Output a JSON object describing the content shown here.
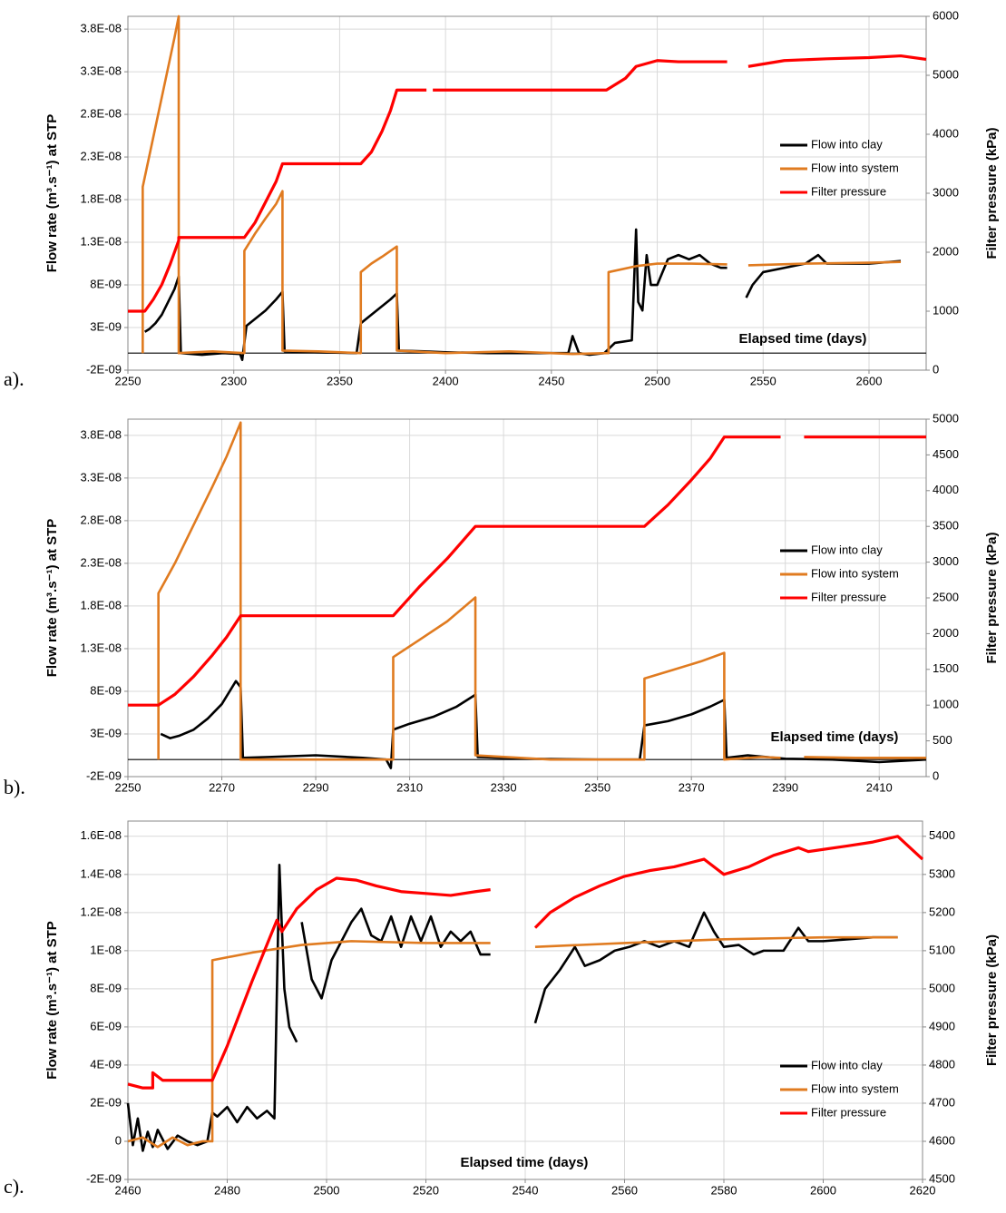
{
  "chart_data": [
    {
      "type": "line",
      "panel_label": "a).",
      "x_label": "Elapsed time (days)",
      "y_label": "Flow rate (m³.s⁻¹) at STP",
      "y2_label": "Filter pressure (kPa)",
      "xlim": [
        2250,
        2627
      ],
      "ylim": [
        -2e-09,
        3.95e-08
      ],
      "y2lim": [
        0,
        6000
      ],
      "grid": true,
      "legend": "right",
      "x_axis_crossing": 0,
      "xticks": [
        2250,
        2300,
        2350,
        2400,
        2450,
        2500,
        2550,
        2600
      ],
      "yticks": [
        {
          "value": -2e-09,
          "label": "-2E-09"
        },
        {
          "value": 3e-09,
          "label": "3E-09"
        },
        {
          "value": 8e-09,
          "label": "8E-09"
        },
        {
          "value": 1.3e-08,
          "label": "1.3E-08"
        },
        {
          "value": 1.8e-08,
          "label": "1.8E-08"
        },
        {
          "value": 2.3e-08,
          "label": "2.3E-08"
        },
        {
          "value": 2.8e-08,
          "label": "2.8E-08"
        },
        {
          "value": 3.3e-08,
          "label": "3.3E-08"
        },
        {
          "value": 3.8e-08,
          "label": "3.8E-08"
        }
      ],
      "y2ticks": [
        0,
        1000,
        2000,
        3000,
        4000,
        5000,
        6000
      ],
      "series": [
        {
          "name": "Flow into clay",
          "color": "#000000",
          "x": [
            2258,
            2260,
            2263,
            2266,
            2269,
            2272,
            2274,
            2275,
            2285,
            2295,
            2303,
            2304,
            2306,
            2310,
            2315,
            2320,
            2323,
            2324,
            2340,
            2358,
            2360,
            2365,
            2370,
            2374,
            2377,
            2378,
            2390,
            2400,
            2420,
            2440,
            2458,
            2460,
            2463,
            2468,
            2475,
            2480,
            2488,
            2490,
            2491,
            2493,
            2495,
            2497,
            2500,
            2505,
            2510,
            2515,
            2520,
            2525,
            2530,
            2533,
            2538,
            2542,
            2545,
            2550,
            2560,
            2570,
            2576,
            2580,
            2590,
            2600,
            2610,
            2615
          ],
          "values": [
            2.5e-09,
            2.8e-09,
            3.5e-09,
            4.5e-09,
            6e-09,
            7.5e-09,
            9e-09,
            0,
            -2e-10,
            0,
            -1e-10,
            -8e-10,
            3.2e-09,
            4e-09,
            5e-09,
            6.3e-09,
            7.2e-09,
            2e-10,
            1e-10,
            0,
            3.5e-09,
            4.5e-09,
            5.5e-09,
            6.3e-09,
            7e-09,
            3e-10,
            2e-10,
            1e-10,
            0,
            0,
            0,
            2e-09,
            0,
            -2e-10,
            0,
            1.2e-09,
            1.5e-09,
            1.45e-08,
            6e-09,
            5e-09,
            1.15e-08,
            8e-09,
            8e-09,
            1.1e-08,
            1.15e-08,
            1.1e-08,
            1.15e-08,
            1.05e-08,
            1e-08,
            1e-08,
            null,
            6.5e-09,
            8e-09,
            9.5e-09,
            1e-08,
            1.05e-08,
            1.15e-08,
            1.05e-08,
            1.05e-08,
            1.05e-08,
            1.07e-08,
            1.08e-08
          ]
        },
        {
          "name": "Flow into system",
          "color": "#e07b20",
          "x": [
            2257,
            2257,
            2260,
            2263,
            2266,
            2269,
            2272,
            2274,
            2274,
            2290,
            2305,
            2305,
            2310,
            2315,
            2320,
            2323,
            2323,
            2340,
            2360,
            2360,
            2365,
            2370,
            2377,
            2377,
            2400,
            2430,
            2460,
            2477,
            2477,
            2490,
            2500,
            2515,
            2533,
            2538,
            2543,
            2570,
            2600,
            2615
          ],
          "values": [
            0,
            1.95e-08,
            2.3e-08,
            2.65e-08,
            3e-08,
            3.35e-08,
            3.7e-08,
            3.95e-08,
            0,
            2e-10,
            0,
            1.2e-08,
            1.4e-08,
            1.58e-08,
            1.75e-08,
            1.9e-08,
            3e-10,
            2e-10,
            0,
            9.5e-09,
            1.05e-08,
            1.13e-08,
            1.25e-08,
            3e-10,
            0,
            2e-10,
            -1e-10,
            0,
            9.5e-09,
            1.02e-08,
            1.05e-08,
            1.05e-08,
            1.04e-08,
            null,
            1.03e-08,
            1.05e-08,
            1.06e-08,
            1.07e-08
          ]
        },
        {
          "name": "Filter pressure",
          "color": "#ff0000",
          "axis": "y2",
          "x": [
            2250,
            2258,
            2262,
            2266,
            2270,
            2274,
            2274,
            2305,
            2310,
            2315,
            2320,
            2323,
            2360,
            2365,
            2370,
            2374,
            2377,
            2391,
            2392,
            2394,
            2440,
            2476,
            2485,
            2490,
            2500,
            2510,
            2533,
            2538,
            2543,
            2560,
            2580,
            2600,
            2615,
            2627
          ],
          "values": [
            1000,
            1000,
            1200,
            1450,
            1800,
            2200,
            2250,
            2250,
            2500,
            2850,
            3200,
            3500,
            3500,
            3700,
            4050,
            4400,
            4750,
            4750,
            null,
            4750,
            4750,
            4750,
            4950,
            5150,
            5250,
            5230,
            5230,
            null,
            5150,
            5250,
            5280,
            5300,
            5330,
            5270
          ]
        }
      ]
    },
    {
      "type": "line",
      "panel_label": "b).",
      "x_label": "Elapsed time (days)",
      "y_label": "Flow rate (m³.s⁻¹) at STP",
      "y2_label": "Filter pressure (kPa)",
      "xlim": [
        2250,
        2420
      ],
      "ylim": [
        -2e-09,
        3.99e-08
      ],
      "y2lim": [
        0,
        5000
      ],
      "grid": true,
      "legend": "right",
      "x_axis_crossing": 0,
      "xticks": [
        2250,
        2270,
        2290,
        2310,
        2330,
        2350,
        2370,
        2390,
        2410
      ],
      "yticks": [
        {
          "value": -2e-09,
          "label": "-2E-09"
        },
        {
          "value": 3e-09,
          "label": "3E-09"
        },
        {
          "value": 8e-09,
          "label": "8E-09"
        },
        {
          "value": 1.3e-08,
          "label": "1.3E-08"
        },
        {
          "value": 1.8e-08,
          "label": "1.8E-08"
        },
        {
          "value": 2.3e-08,
          "label": "2.3E-08"
        },
        {
          "value": 2.8e-08,
          "label": "2.8E-08"
        },
        {
          "value": 3.3e-08,
          "label": "3.3E-08"
        },
        {
          "value": 3.8e-08,
          "label": "3.8E-08"
        }
      ],
      "y2ticks": [
        0,
        500,
        1000,
        1500,
        2000,
        2500,
        3000,
        3500,
        4000,
        4500,
        5000
      ],
      "series": [
        {
          "name": "Flow into clay",
          "color": "#000000",
          "x": [
            2257,
            2259,
            2261,
            2264,
            2267,
            2270,
            2273,
            2274,
            2274.5,
            2280,
            2290,
            2300,
            2305,
            2306,
            2306.5,
            2310,
            2315,
            2320,
            2324,
            2324.5,
            2335,
            2350,
            2359,
            2360,
            2365,
            2370,
            2374,
            2377,
            2377.5,
            2382,
            2390,
            2400,
            2410,
            2420
          ],
          "values": [
            3e-09,
            2.5e-09,
            2.8e-09,
            3.5e-09,
            4.8e-09,
            6.5e-09,
            9.2e-09,
            8.5e-09,
            2e-10,
            3e-10,
            5e-10,
            2e-10,
            0,
            -1e-09,
            3.5e-09,
            4.2e-09,
            5e-09,
            6.2e-09,
            7.6e-09,
            3e-10,
            1e-10,
            0,
            0,
            4e-09,
            4.5e-09,
            5.3e-09,
            6.2e-09,
            7e-09,
            2e-10,
            5e-10,
            1e-10,
            0,
            -3e-10,
            0
          ]
        },
        {
          "name": "Flow into system",
          "color": "#e07b20",
          "x": [
            2256.5,
            2256.5,
            2260,
            2264,
            2268,
            2271,
            2274,
            2274,
            2290,
            2306.5,
            2306.5,
            2312,
            2318,
            2324,
            2324,
            2340,
            2360,
            2360,
            2366,
            2372,
            2377,
            2377,
            2385,
            2389,
            2391,
            2394,
            2405,
            2420
          ],
          "values": [
            0,
            1.95e-08,
            2.3e-08,
            2.75e-08,
            3.2e-08,
            3.55e-08,
            3.95e-08,
            0,
            0,
            0,
            1.2e-08,
            1.4e-08,
            1.62e-08,
            1.9e-08,
            5e-10,
            0,
            0,
            9.5e-09,
            1.05e-08,
            1.15e-08,
            1.25e-08,
            0,
            3e-10,
            2e-10,
            null,
            3e-10,
            2e-10,
            2e-10
          ]
        },
        {
          "name": "Filter pressure",
          "color": "#ff0000",
          "axis": "y2",
          "x": [
            2250,
            2256.5,
            2260,
            2264,
            2268,
            2271,
            2274,
            2306.5,
            2312,
            2318,
            2324,
            2360,
            2365,
            2370,
            2374,
            2377,
            2389,
            2391,
            2394,
            2420
          ],
          "values": [
            1000,
            1000,
            1150,
            1400,
            1700,
            1950,
            2250,
            2250,
            2650,
            3050,
            3500,
            3500,
            3800,
            4150,
            4450,
            4750,
            4750,
            null,
            4750,
            4750
          ]
        }
      ]
    },
    {
      "type": "line",
      "panel_label": "c).",
      "x_label": "Elapsed time (days)",
      "y_label": "Flow rate (m³.s⁻¹) at STP",
      "y2_label": "Filter pressure (kPa)",
      "xlim": [
        2460,
        2620
      ],
      "ylim": [
        -2e-09,
        1.68e-08
      ],
      "y2lim": [
        4500,
        5440
      ],
      "grid": true,
      "legend": "right",
      "xticks": [
        2460,
        2480,
        2500,
        2520,
        2540,
        2560,
        2580,
        2600,
        2620
      ],
      "yticks": [
        {
          "value": -2e-09,
          "label": "-2E-09"
        },
        0,
        {
          "value": 2e-09,
          "label": "2E-09"
        },
        {
          "value": 4e-09,
          "label": "4E-09"
        },
        {
          "value": 6e-09,
          "label": "6E-09"
        },
        {
          "value": 8e-09,
          "label": "8E-09"
        },
        {
          "value": 1e-08,
          "label": "1E-08"
        },
        {
          "value": 1.2e-08,
          "label": "1.2E-08"
        },
        {
          "value": 1.4e-08,
          "label": "1.4E-08"
        },
        {
          "value": 1.6e-08,
          "label": "1.6E-08"
        }
      ],
      "y2ticks": [
        4500,
        4600,
        4700,
        4800,
        4900,
        5000,
        5100,
        5200,
        5300,
        5400
      ],
      "series": [
        {
          "name": "Flow into clay",
          "color": "#000000",
          "x": [
            2460,
            2461,
            2462,
            2463,
            2464,
            2465,
            2466,
            2468,
            2470,
            2472,
            2474,
            2476,
            2477,
            2478,
            2480,
            2482,
            2484,
            2486,
            2488,
            2489.5,
            2490.5,
            2491.5,
            2492.5,
            2494,
            2494.5,
            2495,
            2497,
            2499,
            2501,
            2503,
            2505,
            2507,
            2509,
            2511,
            2513,
            2515,
            2517,
            2519,
            2521,
            2523,
            2525,
            2527,
            2529,
            2531,
            2533,
            2537,
            2542,
            2544,
            2547,
            2550,
            2552,
            2555,
            2558,
            2561,
            2564,
            2567,
            2570,
            2573,
            2576,
            2578,
            2580,
            2583,
            2586,
            2588,
            2592,
            2595,
            2597,
            2600,
            2605,
            2610,
            2615
          ],
          "values": [
            2e-09,
            -2e-10,
            1.2e-09,
            -5e-10,
            5e-10,
            -3e-10,
            6e-10,
            -4e-10,
            3e-10,
            0,
            -2e-10,
            0,
            1.5e-09,
            1.3e-09,
            1.8e-09,
            1e-09,
            1.8e-09,
            1.2e-09,
            1.6e-09,
            1.2e-09,
            1.45e-08,
            8e-09,
            6e-09,
            5.2e-09,
            null,
            1.15e-08,
            8.5e-09,
            7.5e-09,
            9.5e-09,
            1.05e-08,
            1.15e-08,
            1.22e-08,
            1.08e-08,
            1.05e-08,
            1.18e-08,
            1.02e-08,
            1.18e-08,
            1.05e-08,
            1.18e-08,
            1.02e-08,
            1.1e-08,
            1.05e-08,
            1.1e-08,
            9.8e-09,
            9.8e-09,
            null,
            6.2e-09,
            8e-09,
            9e-09,
            1.02e-08,
            9.2e-09,
            9.5e-09,
            1e-08,
            1.02e-08,
            1.05e-08,
            1.02e-08,
            1.05e-08,
            1.02e-08,
            1.2e-08,
            1.1e-08,
            1.02e-08,
            1.03e-08,
            9.8e-09,
            1e-08,
            1e-08,
            1.12e-08,
            1.05e-08,
            1.05e-08,
            1.06e-08,
            1.07e-08,
            1.07e-08
          ]
        },
        {
          "name": "Flow into system",
          "color": "#e07b20",
          "x": [
            2460,
            2463,
            2466,
            2469,
            2472,
            2475,
            2477,
            2477,
            2485,
            2495,
            2505,
            2520,
            2533,
            2537,
            2542,
            2560,
            2580,
            2600,
            2615
          ],
          "values": [
            0,
            2e-10,
            -3e-10,
            2e-10,
            -2e-10,
            0,
            0,
            9.5e-09,
            9.9e-09,
            1.03e-08,
            1.05e-08,
            1.04e-08,
            1.04e-08,
            null,
            1.02e-08,
            1.04e-08,
            1.06e-08,
            1.07e-08,
            1.07e-08
          ]
        },
        {
          "name": "Filter pressure",
          "color": "#ff0000",
          "axis": "y2",
          "x": [
            2460,
            2463,
            2465,
            2465,
            2467,
            2477,
            2480,
            2485,
            2490,
            2491,
            2494,
            2498,
            2502,
            2506,
            2510,
            2515,
            2520,
            2525,
            2530,
            2533,
            2537,
            2542,
            2545,
            2550,
            2555,
            2560,
            2565,
            2570,
            2576,
            2580,
            2585,
            2590,
            2595,
            2597,
            2605,
            2610,
            2615,
            2620
          ],
          "values": [
            4750,
            4740,
            4740,
            4780,
            4760,
            4760,
            4850,
            5020,
            5180,
            5150,
            5210,
            5260,
            5290,
            5285,
            5270,
            5255,
            5250,
            5245,
            5255,
            5260,
            null,
            5160,
            5200,
            5240,
            5270,
            5295,
            5310,
            5320,
            5340,
            5300,
            5320,
            5350,
            5370,
            5360,
            5375,
            5385,
            5400,
            5340
          ]
        }
      ]
    }
  ]
}
